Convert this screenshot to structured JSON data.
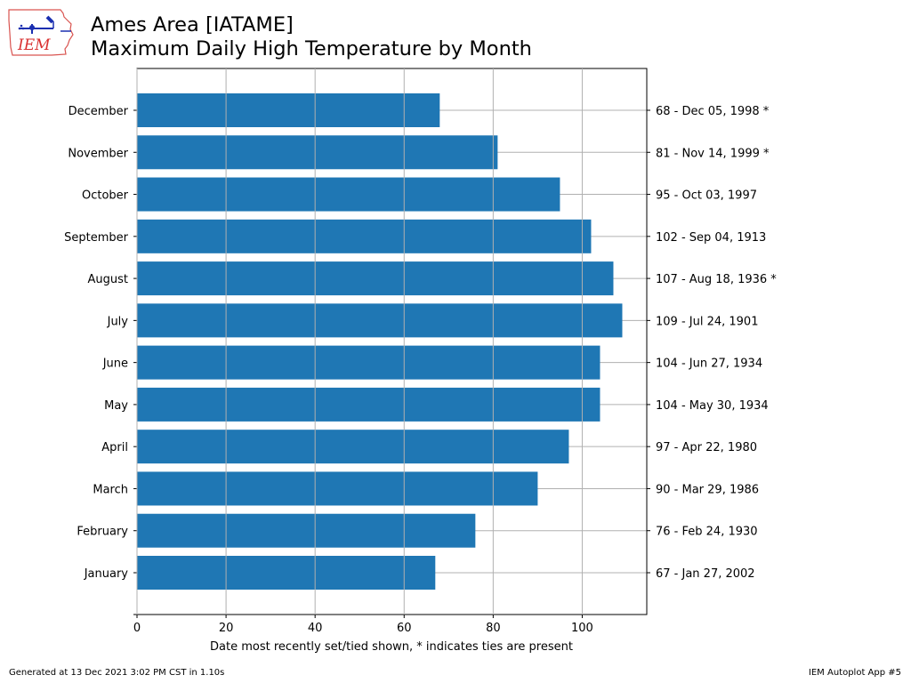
{
  "header": {
    "title_line1": "Ames Area [IATAME]",
    "title_line2": "Maximum Daily High Temperature by Month",
    "logo_text": "IEM"
  },
  "chart_data": {
    "type": "bar",
    "orientation": "horizontal",
    "categories": [
      "January",
      "February",
      "March",
      "April",
      "May",
      "June",
      "July",
      "August",
      "September",
      "October",
      "November",
      "December"
    ],
    "values": [
      67,
      76,
      90,
      97,
      104,
      104,
      109,
      107,
      102,
      95,
      81,
      68
    ],
    "right_labels": [
      "67 - Jan 27, 2002",
      "76 - Feb 24, 1930",
      "90 - Mar 29, 1986",
      "97 - Apr 22, 1980",
      "104 - May 30, 1934",
      "104 - Jun 27, 1934",
      "109 - Jul 24, 1901",
      "107 - Aug 18, 1936 *",
      "102 - Sep 04, 1913",
      "95 - Oct 03, 1997",
      "81 - Nov 14, 1999 *",
      "68 - Dec 05, 1998 *"
    ],
    "xlabel": "Date most recently set/tied shown, * indicates ties are present",
    "xlim": [
      0,
      114.5
    ],
    "xticks": [
      0,
      20,
      40,
      60,
      80,
      100
    ],
    "grid": true,
    "bar_color": "#1f77b4"
  },
  "footer": {
    "left": "Generated at 13 Dec 2021 3:02 PM CST in 1.10s",
    "right": "IEM Autoplot App #5"
  }
}
